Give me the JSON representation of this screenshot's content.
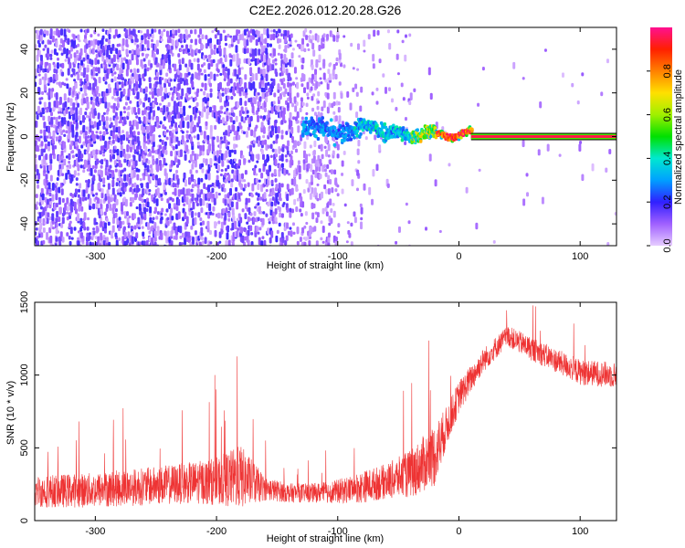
{
  "title": "C2E2.2026.012.20.28.G26",
  "colors": {
    "snr_line": "#ee3333",
    "frame": "#000000"
  },
  "chart_data": [
    {
      "type": "heatmap",
      "name": "spectrogram",
      "xlabel": "Height of straight line (km)",
      "ylabel": "Frequency (Hz)",
      "xlim": [
        -350,
        130
      ],
      "ylim": [
        -50,
        50
      ],
      "xticks": [
        -300,
        -200,
        -100,
        0,
        100
      ],
      "yticks": [
        -40,
        -20,
        0,
        20,
        40
      ],
      "colorbar": {
        "label": "Normalized spectral amplitude",
        "range": [
          0,
          1
        ],
        "ticks": [
          "0.0",
          "0.2",
          "0.4",
          "0.6",
          "0.8"
        ],
        "tick_values": [
          0,
          0.2,
          0.4,
          0.6,
          0.8
        ]
      },
      "regions": [
        {
          "description": "scattered noise",
          "x_range": [
            -350,
            -100
          ],
          "freq_range": [
            -50,
            50
          ],
          "amplitude": 0.12
        },
        {
          "description": "signal onset band",
          "x_range": [
            -130,
            -40
          ],
          "freq_range": [
            -8,
            12
          ],
          "amplitude": 0.35
        },
        {
          "description": "converging signal",
          "x_range": [
            -40,
            10
          ],
          "freq_range": [
            -3,
            5
          ],
          "amplitude": 0.7
        },
        {
          "description": "steady carrier line",
          "x_range": [
            10,
            130
          ],
          "freq_center": 0,
          "amplitude": 1.0
        }
      ]
    },
    {
      "type": "line",
      "name": "snr",
      "xlabel": "Height of straight line (km)",
      "ylabel": "SNR (10 * v/v)",
      "xlim": [
        -350,
        130
      ],
      "ylim": [
        0,
        1500
      ],
      "xticks": [
        -300,
        -200,
        -100,
        0,
        100
      ],
      "yticks": [
        0,
        500,
        1000,
        1500
      ],
      "series": [
        {
          "name": "SNR",
          "color": "#ee3333",
          "x": [
            -350,
            -300,
            -250,
            -220,
            -200,
            -180,
            -160,
            -140,
            -120,
            -100,
            -80,
            -60,
            -40,
            -20,
            -10,
            0,
            20,
            40,
            60,
            80,
            100,
            130
          ],
          "y_mean": [
            200,
            210,
            240,
            260,
            270,
            300,
            220,
            190,
            190,
            200,
            230,
            270,
            320,
            450,
            650,
            850,
            1100,
            1270,
            1180,
            1100,
            1020,
            1000
          ],
          "y_spread": [
            200,
            220,
            240,
            260,
            300,
            400,
            150,
            120,
            120,
            150,
            200,
            220,
            300,
            400,
            250,
            200,
            150,
            130,
            150,
            150,
            160,
            160
          ]
        }
      ]
    }
  ]
}
